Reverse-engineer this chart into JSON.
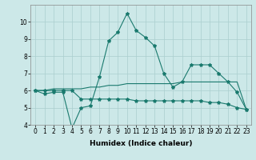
{
  "x": [
    0,
    1,
    2,
    3,
    4,
    5,
    6,
    7,
    8,
    9,
    10,
    11,
    12,
    13,
    14,
    15,
    16,
    17,
    18,
    19,
    20,
    21,
    22,
    23
  ],
  "line1": [
    6.0,
    5.8,
    5.9,
    5.9,
    3.8,
    5.0,
    5.1,
    6.8,
    8.9,
    9.4,
    10.5,
    9.5,
    9.1,
    8.6,
    7.0,
    6.2,
    6.5,
    7.5,
    7.5,
    7.5,
    7.0,
    6.5,
    5.9,
    4.9
  ],
  "line2": [
    6.0,
    6.0,
    6.0,
    6.0,
    6.0,
    5.5,
    5.5,
    5.5,
    5.5,
    5.5,
    5.5,
    5.4,
    5.4,
    5.4,
    5.4,
    5.4,
    5.4,
    5.4,
    5.4,
    5.3,
    5.3,
    5.2,
    5.0,
    4.9
  ],
  "line3": [
    6.0,
    6.0,
    6.1,
    6.1,
    6.1,
    6.1,
    6.2,
    6.2,
    6.3,
    6.3,
    6.4,
    6.4,
    6.4,
    6.4,
    6.4,
    6.4,
    6.5,
    6.5,
    6.5,
    6.5,
    6.5,
    6.5,
    6.5,
    4.9
  ],
  "line_color": "#1a7a6e",
  "bg_color": "#cce8e8",
  "grid_color": "#aacece",
  "xlabel": "Humidex (Indice chaleur)",
  "ylim": [
    4,
    11
  ],
  "xlim": [
    -0.5,
    23.5
  ],
  "yticks": [
    4,
    5,
    6,
    7,
    8,
    9,
    10
  ],
  "xticks": [
    0,
    1,
    2,
    3,
    4,
    5,
    6,
    7,
    8,
    9,
    10,
    11,
    12,
    13,
    14,
    15,
    16,
    17,
    18,
    19,
    20,
    21,
    22,
    23
  ],
  "tick_fontsize": 5.5,
  "xlabel_fontsize": 6.5
}
